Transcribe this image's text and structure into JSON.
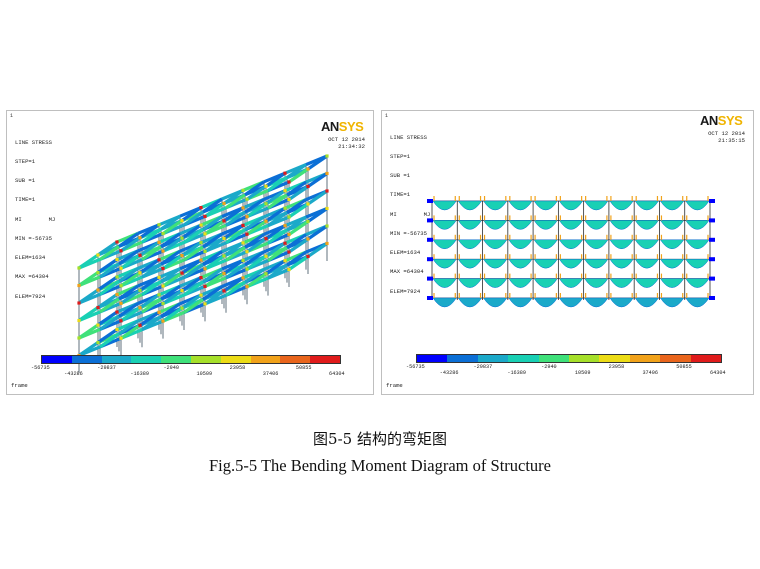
{
  "figures": [
    {
      "id": "left",
      "info_lines": [
        "LINE STRESS",
        "STEP=1",
        "SUB =1",
        "TIME=1",
        "MI        MJ",
        "MIN =-56735",
        "ELEM=1634",
        "MAX =64304",
        "ELEM=7924"
      ],
      "logo_main": "AN",
      "logo_accent": "SYS",
      "date": "OCT 12 2014",
      "time": "21:34:32",
      "legend_ticks": [
        "-56735",
        "-43286",
        "-29837",
        "-16389",
        "-2940",
        "10509",
        "23958",
        "37406",
        "50855",
        "64304"
      ],
      "frame_label": "frame"
    },
    {
      "id": "right",
      "info_lines": [
        "LINE STRESS",
        "STEP=1",
        "SUB =1",
        "TIME=1",
        "MI        MJ",
        "MIN =-56735",
        "ELEM=1634",
        "MAX =64304",
        "ELEM=7924"
      ],
      "logo_main": "AN",
      "logo_accent": "SYS",
      "date": "OCT 12 2014",
      "time": "21:35:15",
      "legend_ticks": [
        "-56735",
        "-43286",
        "-29837",
        "-16389",
        "-2940",
        "10509",
        "23958",
        "37406",
        "50855",
        "64304"
      ],
      "frame_label": "frame"
    }
  ],
  "legend_colors": [
    "#0000ff",
    "#0b6fd6",
    "#1ba9c9",
    "#19d0b4",
    "#3fe17a",
    "#a6e02a",
    "#ecdc16",
    "#f1a21a",
    "#e9651c",
    "#e01b1b"
  ],
  "caption_cn": "图5-5  结构的弯矩图",
  "caption_en": "Fig.5-5 The Bending Moment Diagram of Structure"
}
